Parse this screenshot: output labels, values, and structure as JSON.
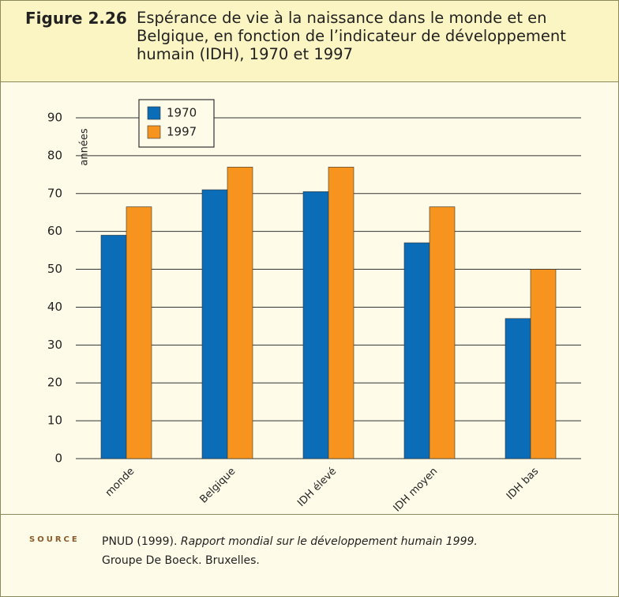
{
  "header": {
    "figure": "Figure 2.26",
    "title": "Espérance de vie à la naissance dans le monde et en Belgique, en fonction de l’indicateur de développement humain (IDH), 1970 et 1997"
  },
  "chart_data": {
    "type": "bar",
    "ylabel": "années",
    "categories": [
      "monde",
      "Belgique",
      "IDH élevé",
      "IDH moyen",
      "IDH bas"
    ],
    "series": [
      {
        "name": "1970",
        "color": "#0b6db7",
        "values": [
          59,
          71,
          70.5,
          57,
          37
        ]
      },
      {
        "name": "1997",
        "color": "#f7941d",
        "values": [
          66.5,
          77,
          77,
          66.5,
          50
        ]
      }
    ],
    "ylim": [
      0,
      90
    ],
    "yticks": [
      0,
      10,
      20,
      30,
      40,
      50,
      60,
      70,
      80,
      90
    ],
    "grid": true,
    "legend": "top-left"
  },
  "source": {
    "label": "SOURCE",
    "author": "PNUD (1999).",
    "work": "Rapport mondial sur le développement humain 1999.",
    "publisher": "Groupe De Boeck. Bruxelles."
  }
}
